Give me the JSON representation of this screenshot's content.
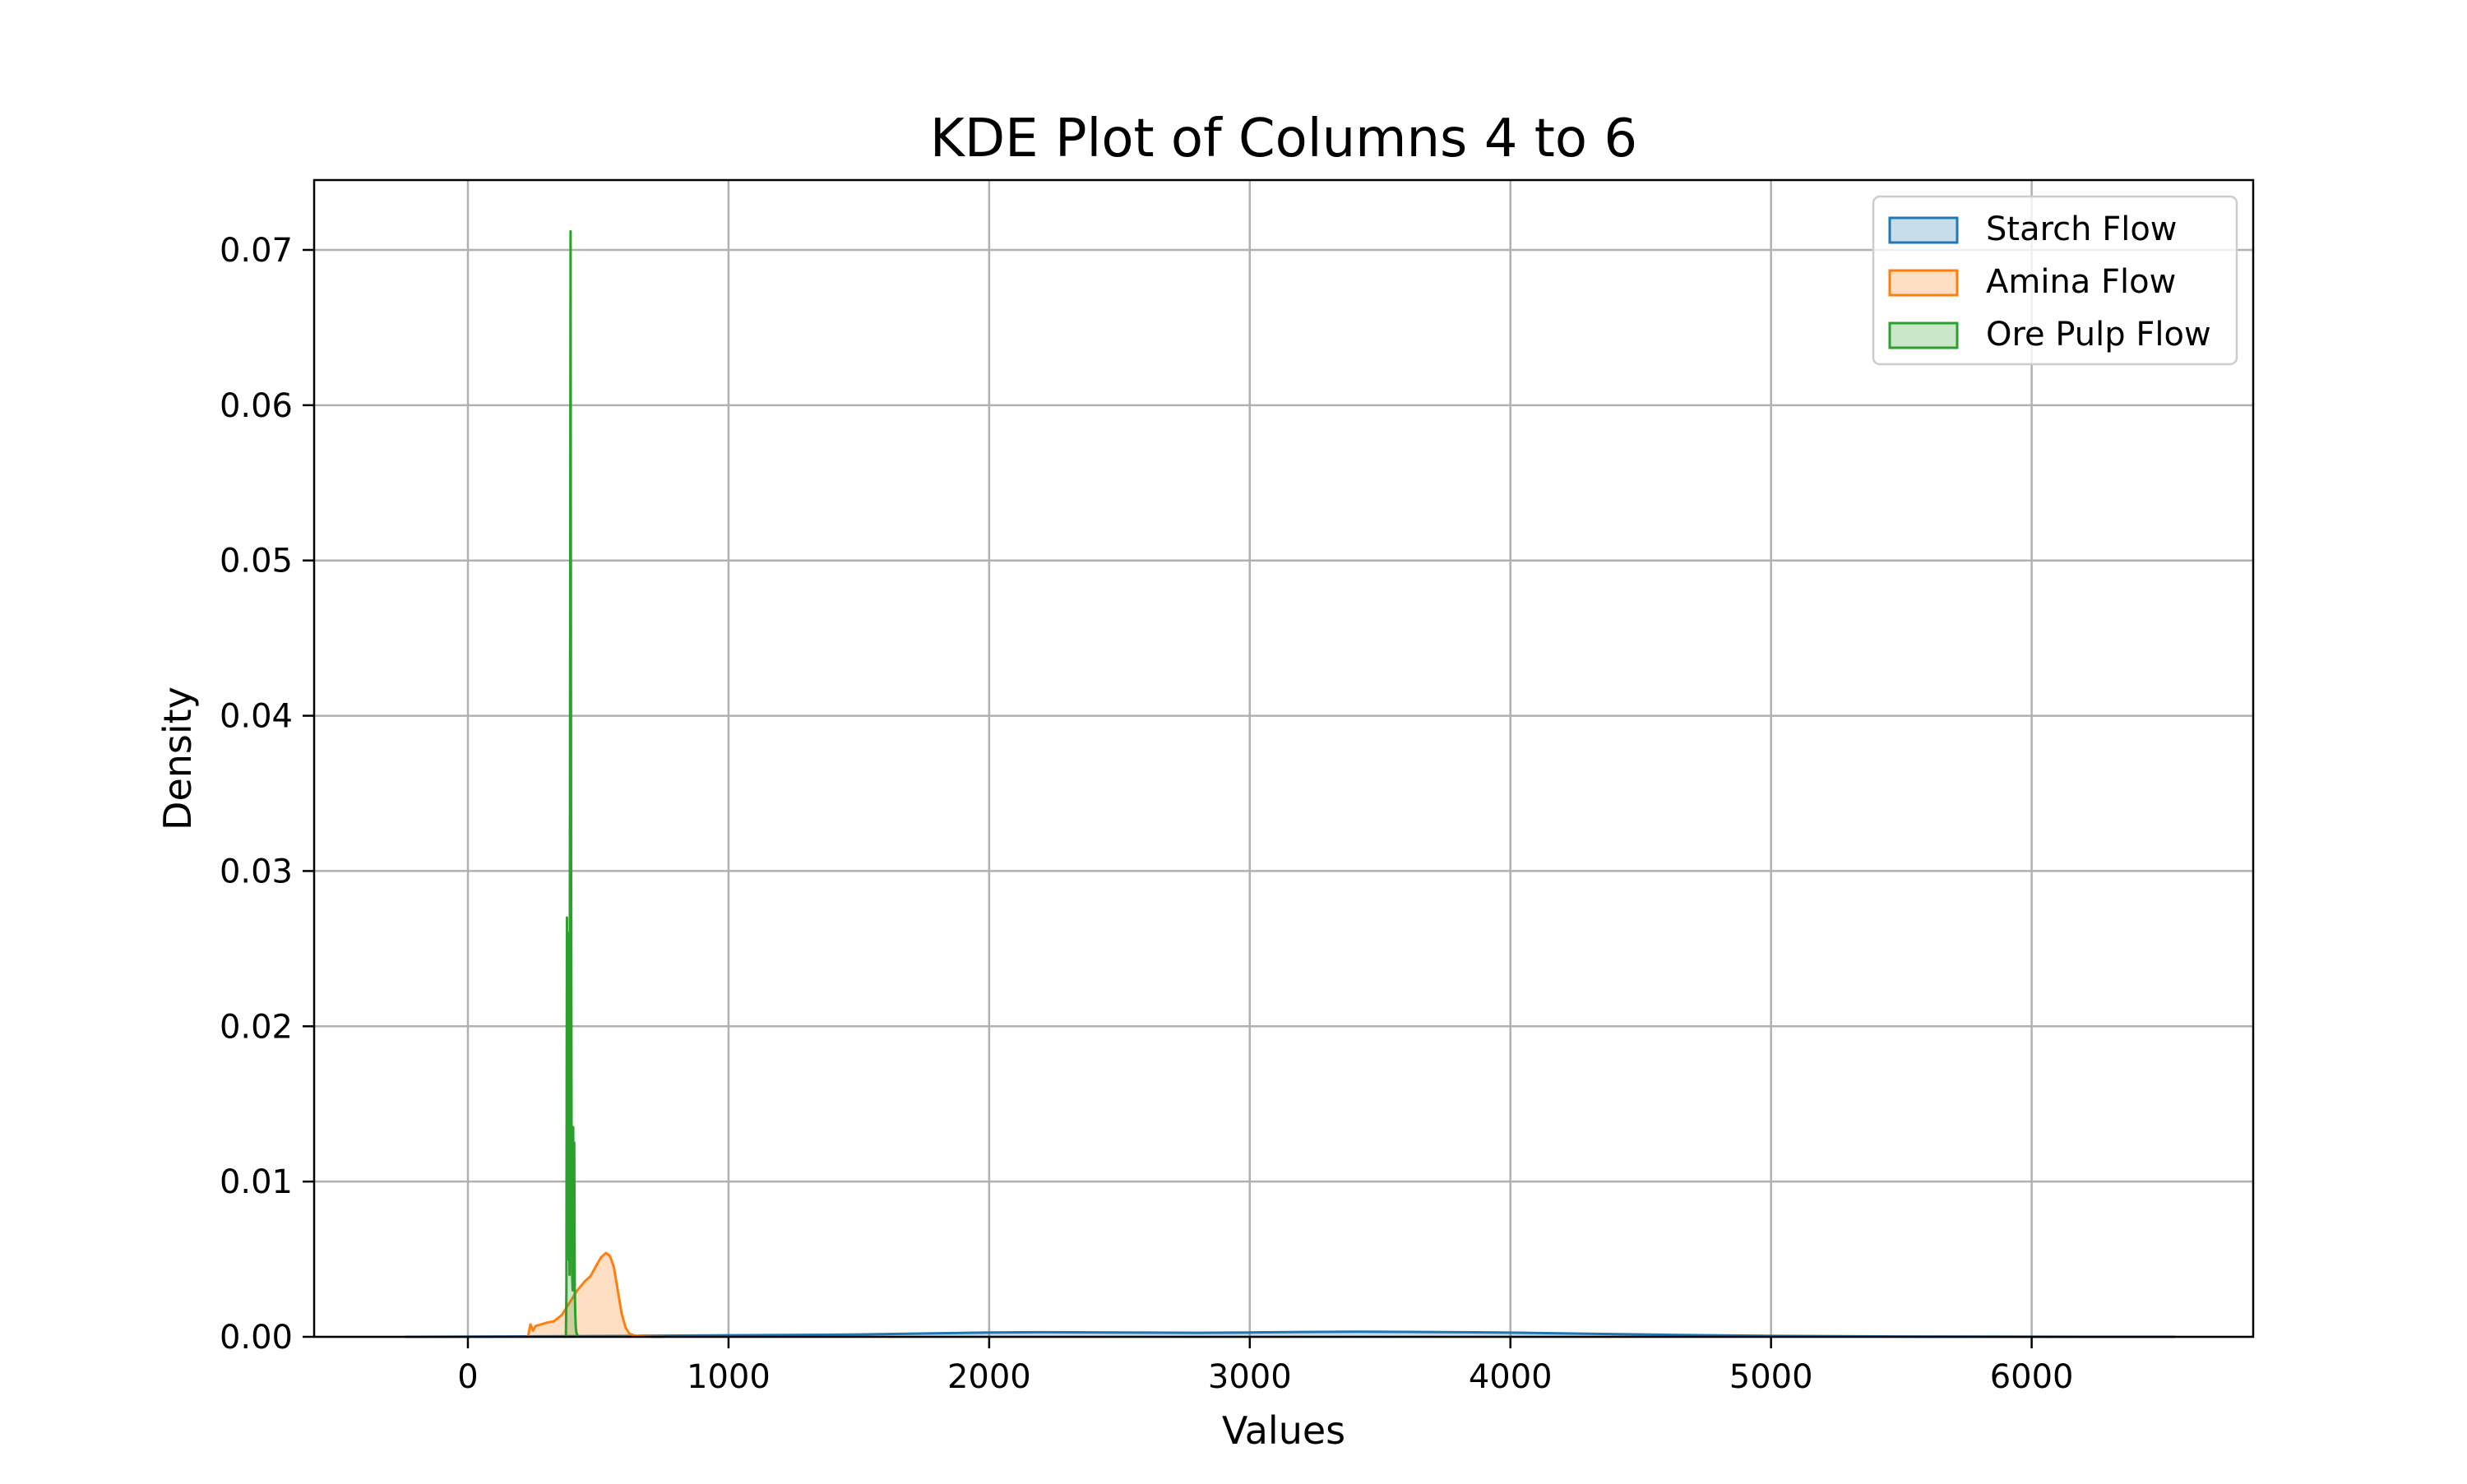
{
  "chart_data": {
    "type": "area",
    "title": "KDE Plot of Columns 4 to 6",
    "xlabel": "Values",
    "ylabel": "Density",
    "xlim": [
      -590,
      6850
    ],
    "ylim": [
      0,
      0.0745
    ],
    "xticks": [
      0,
      1000,
      2000,
      3000,
      4000,
      5000,
      6000
    ],
    "xtick_labels": [
      "0",
      "1000",
      "2000",
      "3000",
      "4000",
      "5000",
      "6000"
    ],
    "yticks": [
      0,
      0.01,
      0.02,
      0.03,
      0.04,
      0.05,
      0.06,
      0.07
    ],
    "ytick_labels": [
      "0.00",
      "0.01",
      "0.02",
      "0.03",
      "0.04",
      "0.05",
      "0.06",
      "0.07"
    ],
    "grid": true,
    "legend_position": "upper right",
    "series": [
      {
        "name": "Starch Flow",
        "color": "#1f77b4",
        "x": [
          -240,
          0,
          500,
          1000,
          1500,
          2000,
          2200,
          2500,
          2800,
          3000,
          3200,
          3400,
          3600,
          3800,
          4000,
          4300,
          4600,
          5000,
          5500,
          6000,
          6550
        ],
        "y": [
          0,
          1e-05,
          5e-05,
          0.0001,
          0.00015,
          0.00028,
          0.0003,
          0.00028,
          0.00026,
          0.00028,
          0.00031,
          0.00033,
          0.00032,
          0.0003,
          0.00027,
          0.0002,
          0.00013,
          6e-05,
          2e-05,
          5e-06,
          0
        ]
      },
      {
        "name": "Amina Flow",
        "color": "#ff7f0e",
        "x": [
          230,
          240,
          250,
          260,
          280,
          300,
          330,
          360,
          390,
          420,
          450,
          470,
          490,
          510,
          530,
          545,
          560,
          575,
          590,
          605,
          620,
          640,
          660,
          690,
          720,
          750
        ],
        "y": [
          0,
          0.0008,
          0.0004,
          0.0007,
          0.0008,
          0.0009,
          0.001,
          0.0014,
          0.0022,
          0.003,
          0.0036,
          0.0039,
          0.0045,
          0.0051,
          0.0054,
          0.0052,
          0.0045,
          0.003,
          0.0015,
          0.0006,
          0.0002,
          8e-05,
          3e-05,
          1e-05,
          0,
          0
        ]
      },
      {
        "name": "Ore Pulp Flow",
        "color": "#2ca02c",
        "x": [
          370,
          376,
          378,
          380,
          382,
          384,
          386,
          388,
          390,
          392,
          394,
          396,
          398,
          400,
          402,
          404,
          406,
          408,
          410,
          412,
          414,
          416,
          418,
          420,
          424
        ],
        "y": [
          0,
          0,
          0.003,
          0.027,
          0.012,
          0.005,
          0.026,
          0.009,
          0.004,
          0.04,
          0.0712,
          0.03,
          0.01,
          0.004,
          0.003,
          0.0135,
          0.006,
          0.0125,
          0.003,
          0.0015,
          0.0006,
          0.0003,
          0.0002,
          0.0001,
          0
        ]
      }
    ]
  }
}
